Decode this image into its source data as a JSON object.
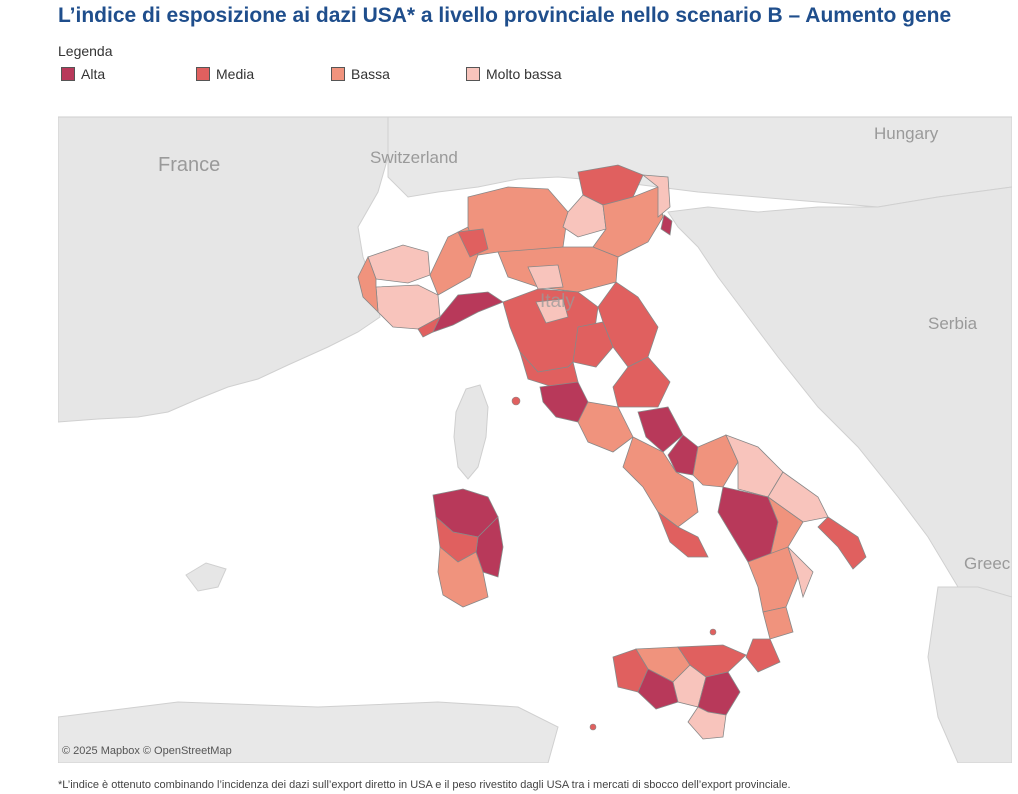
{
  "title": "L’indice di esposizione ai dazi USA* a livello provinciale nello scenario B – Aumento gene",
  "legend": {
    "title": "Legenda",
    "items": [
      {
        "label": "Alta",
        "color": "#b8395a"
      },
      {
        "label": "Media",
        "color": "#e0605f"
      },
      {
        "label": "Bassa",
        "color": "#f0937d"
      },
      {
        "label": "Molto bassa",
        "color": "#f8c4bc"
      }
    ]
  },
  "map": {
    "country_labels": [
      "France",
      "Switzerland",
      "Hungary",
      "Serbia",
      "Greec",
      "Italy"
    ],
    "credits": "© 2025 Mapbox  © OpenStreetMap",
    "sea_color": "#ffffff",
    "land_color": "#e8e8e8",
    "region_exposure": {
      "liguria": "Alta",
      "lazio_rome": "Alta",
      "sardinia_north_east": "Alta",
      "campania_avellino": "Alta",
      "basilicata_potenza": "Alta",
      "trieste": "Alta",
      "puglia_east": "Media",
      "calabria_south": "Media",
      "sicily_west": "Media",
      "piemonte_west": "Bassa",
      "toscana": "Media",
      "veneto": "Bassa",
      "lombardia": "Bassa",
      "valle_aosta": "Molto bassa",
      "marche": "Media"
    }
  },
  "footnote": "*L’indice è ottenuto combinando l’incidenza dei dazi sull’export diretto in USA e il peso rivestito dagli USA tra i mercati di sbocco dell’export provinciale."
}
